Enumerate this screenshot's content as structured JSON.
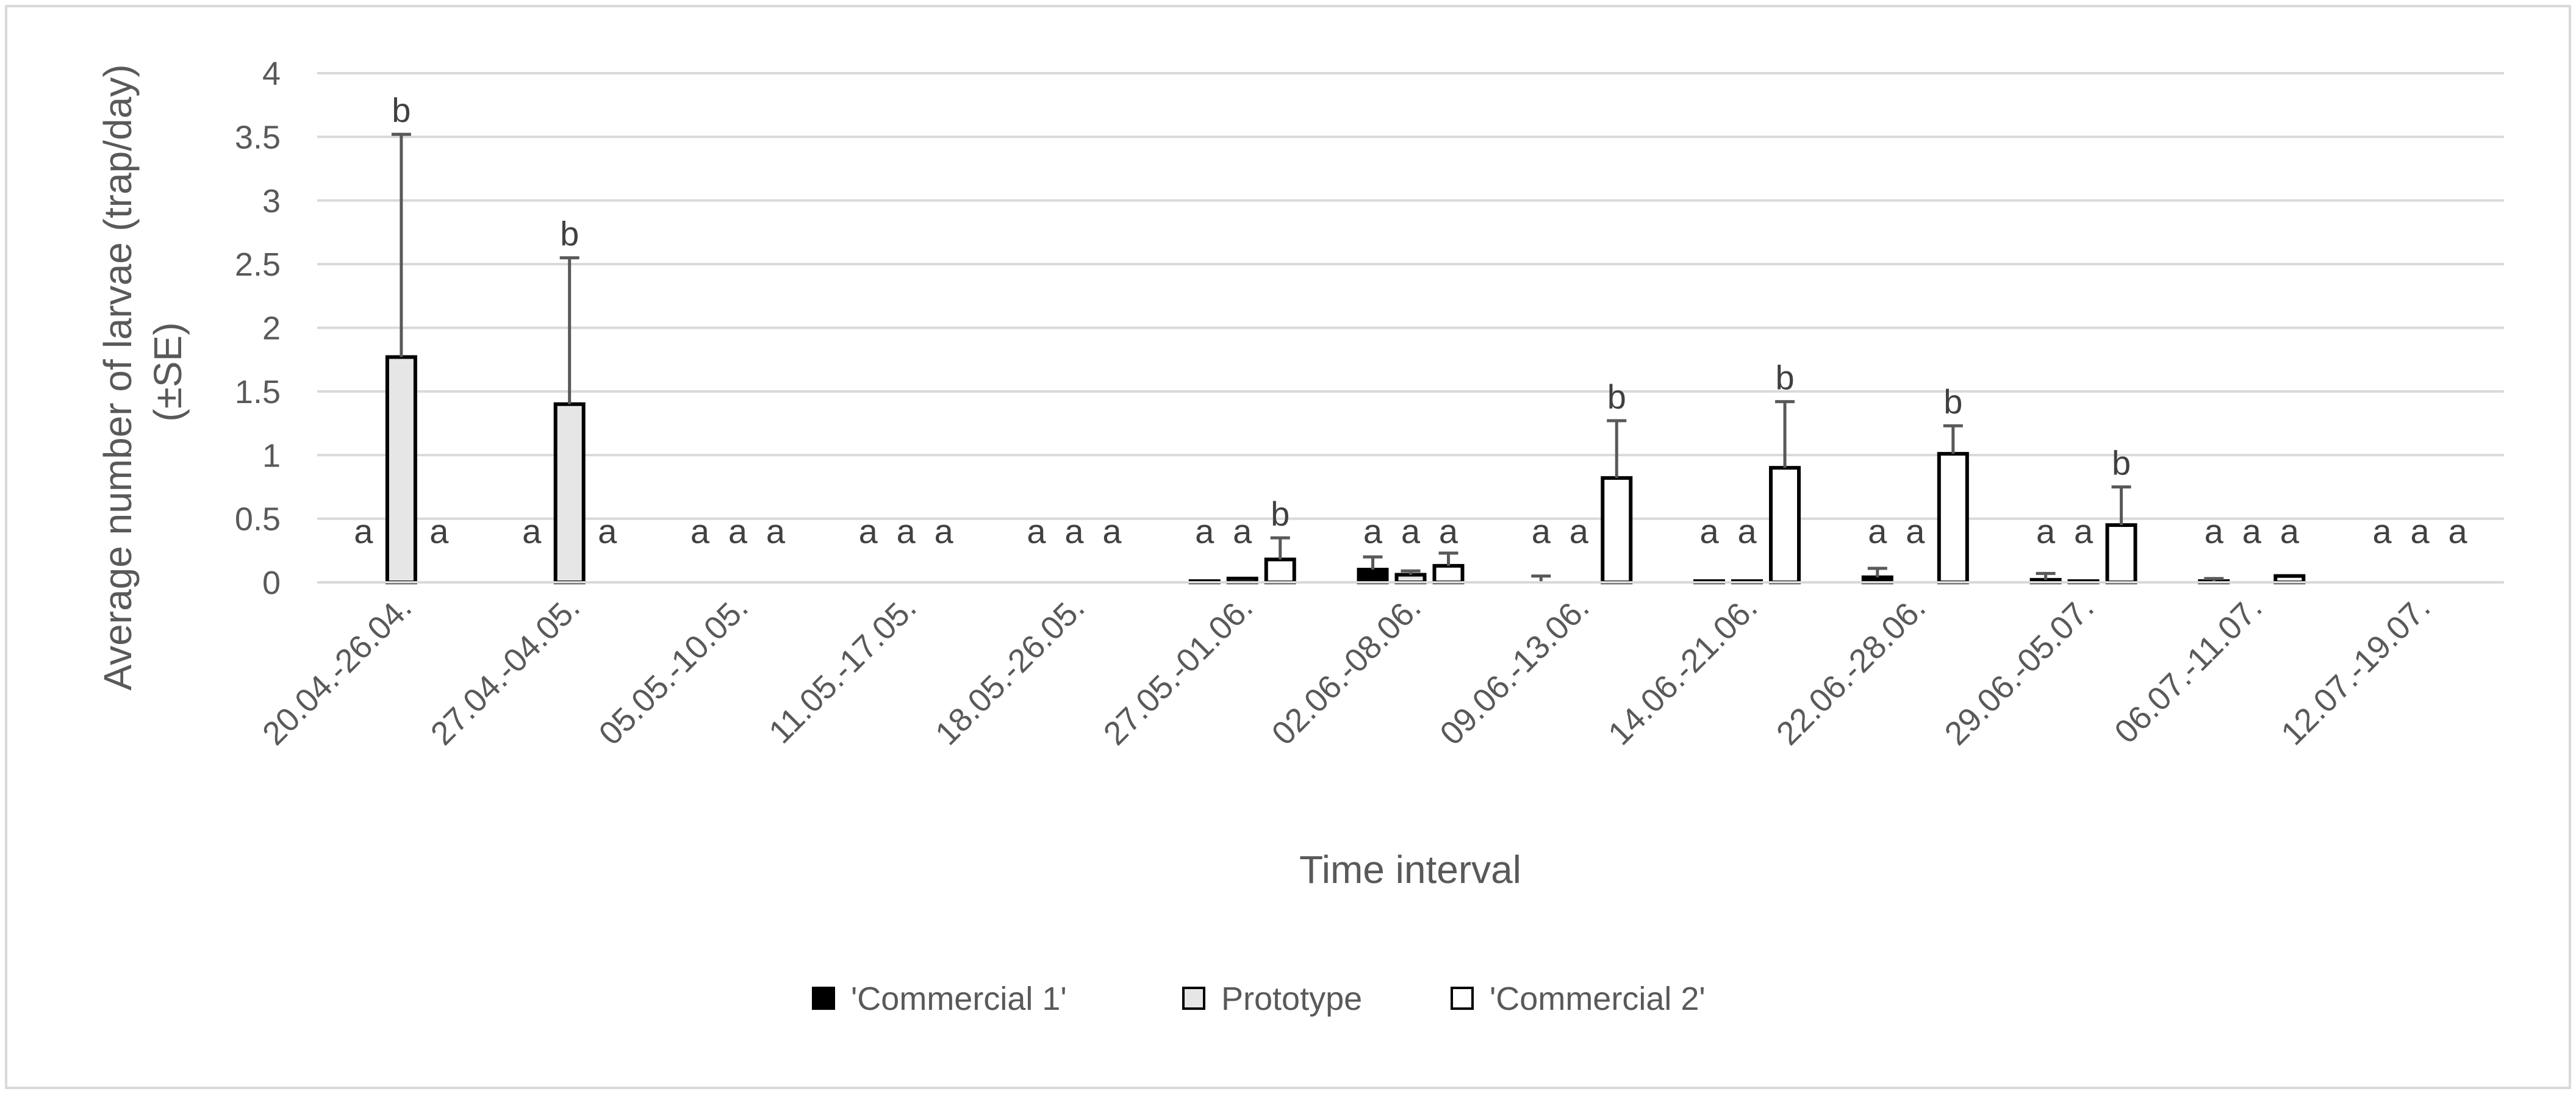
{
  "chart_data": {
    "type": "bar",
    "title": "",
    "xlabel": "Time interval",
    "ylabel_lines": [
      "Average number of larvae (trap/day)",
      "(±SE)"
    ],
    "ylim": [
      0,
      4
    ],
    "yticks": [
      0,
      0.5,
      1,
      1.5,
      2,
      2.5,
      3,
      3.5,
      4
    ],
    "ytick_labels": [
      "0",
      "0.5",
      "1",
      "1.5",
      "2",
      "2.5",
      "3",
      "3.5",
      "4"
    ],
    "grid": true,
    "legend_position": "bottom-center",
    "categories": [
      "20.04.-26.04.",
      "27.04.-04.05.",
      "05.05.-10.05.",
      "11.05.-17.05.",
      "18.05.-26.05.",
      "27.05.-01.06.",
      "02.06.-08.06.",
      "09.06.-13.06.",
      "14.06.-21.06.",
      "22.06.-28.06.",
      "29.06.-05.07.",
      "06.07.-11.07.",
      "12.07.-19.07."
    ],
    "series": [
      {
        "name": "'Commercial 1'",
        "fill": "#000000",
        "values": [
          0,
          0,
          0,
          0,
          0,
          0.01,
          0.1,
          0,
          0.01,
          0.04,
          0.02,
          0.01,
          0
        ],
        "errors": [
          0,
          0,
          0,
          0,
          0,
          0,
          0.1,
          0.05,
          0,
          0.07,
          0.05,
          0.02,
          0
        ],
        "sig": [
          "a",
          "a",
          "a",
          "a",
          "a",
          "a",
          "a",
          "a",
          "a",
          "a",
          "a",
          "a",
          "a"
        ]
      },
      {
        "name": "Prototype",
        "fill": "#e6e6e6",
        "values": [
          1.77,
          1.4,
          0,
          0,
          0,
          0.03,
          0.06,
          0,
          0.01,
          0,
          0.01,
          0,
          0
        ],
        "errors": [
          1.75,
          1.15,
          0,
          0,
          0,
          0,
          0.03,
          0,
          0,
          0,
          0,
          0,
          0
        ],
        "sig": [
          "",
          "",
          "a",
          "a",
          "a",
          "a",
          "a",
          "a",
          "a",
          "a",
          "a",
          "a",
          "a"
        ]
      },
      {
        "name": "'Commercial 2'",
        "fill": "#ffffff",
        "values": [
          0,
          0,
          0,
          0,
          0,
          0.18,
          0.13,
          0.82,
          0.9,
          1.01,
          0.45,
          0.05,
          0
        ],
        "errors": [
          0,
          0,
          0,
          0,
          0,
          0.17,
          0.1,
          0.45,
          0.52,
          0.22,
          0.3,
          0,
          0
        ],
        "sig": [
          "a",
          "a",
          "a",
          "a",
          "a",
          "b",
          "a",
          "b",
          "b",
          "b",
          "b",
          "a",
          "a"
        ]
      }
    ],
    "top_labels": [
      {
        "category": 0,
        "series": 1,
        "text": "b"
      },
      {
        "category": 1,
        "series": 1,
        "text": "b"
      }
    ]
  }
}
